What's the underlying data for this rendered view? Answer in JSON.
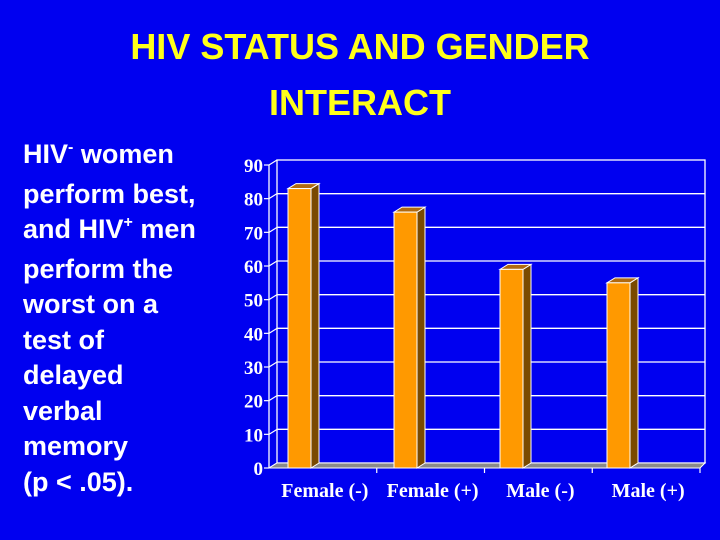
{
  "slide": {
    "title_line1": "HIV STATUS AND GENDER",
    "title_line2": "INTERACT",
    "bullet": {
      "l1_a": "HIV",
      "l1_sup": "-",
      "l1_b": " women",
      "l2": "perform best,",
      "l3_a": "and HIV",
      "l3_sup": "+",
      "l3_b": " men",
      "l4": "perform the",
      "l5": "worst on a",
      "l6": "test of",
      "l7": "delayed",
      "l8": "verbal",
      "l9": "memory",
      "l10": " (p < .05)."
    },
    "colors": {
      "background": "#0000f0",
      "title": "#ffff1a",
      "text": "#ffffff",
      "bar_front": "#ff9900",
      "bar_side": "#7a4a00",
      "bar_top": "#b06a10",
      "floor": "#8a8a8a"
    }
  },
  "chart_data": {
    "type": "bar",
    "title": "",
    "xlabel": "",
    "ylabel": "",
    "categories": [
      "Female (-)",
      "Female (+)",
      "Male (-)",
      "Male (+)"
    ],
    "values": [
      83,
      76,
      59,
      55
    ],
    "ylim": [
      0,
      90
    ],
    "yticks": [
      0,
      10,
      20,
      30,
      40,
      50,
      60,
      70,
      80,
      90
    ],
    "grid": true,
    "legend": "none",
    "style": "3d-column"
  }
}
